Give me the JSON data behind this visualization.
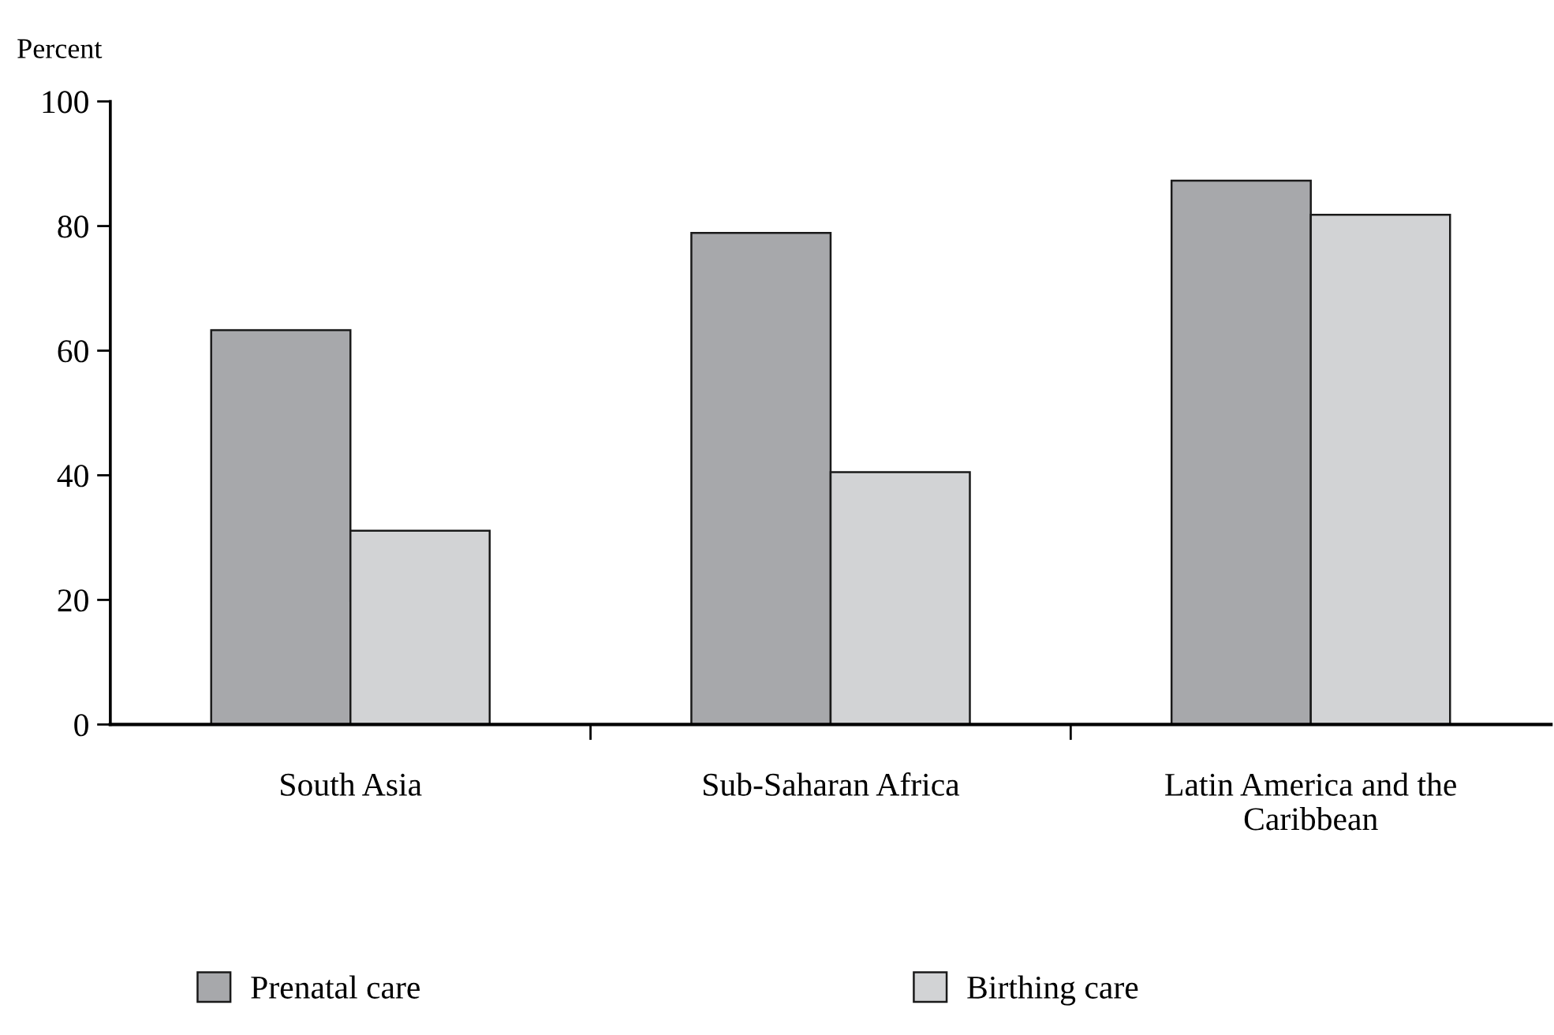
{
  "chart_data": {
    "type": "bar",
    "ylabel": "Percent",
    "categories": [
      "South Asia",
      "Sub-Saharan Africa",
      "Latin America and the Caribbean"
    ],
    "series": [
      {
        "name": "Prenatal care",
        "color": "#a7a8ab",
        "values": [
          63.3,
          78.9,
          87.3
        ]
      },
      {
        "name": "Birthing care",
        "color": "#d2d3d5",
        "values": [
          31.1,
          40.5,
          81.8
        ]
      }
    ],
    "ylim": [
      0,
      100
    ],
    "yticks": [
      0,
      20,
      40,
      60,
      80,
      100
    ],
    "grid": false,
    "legend": "bottom"
  }
}
